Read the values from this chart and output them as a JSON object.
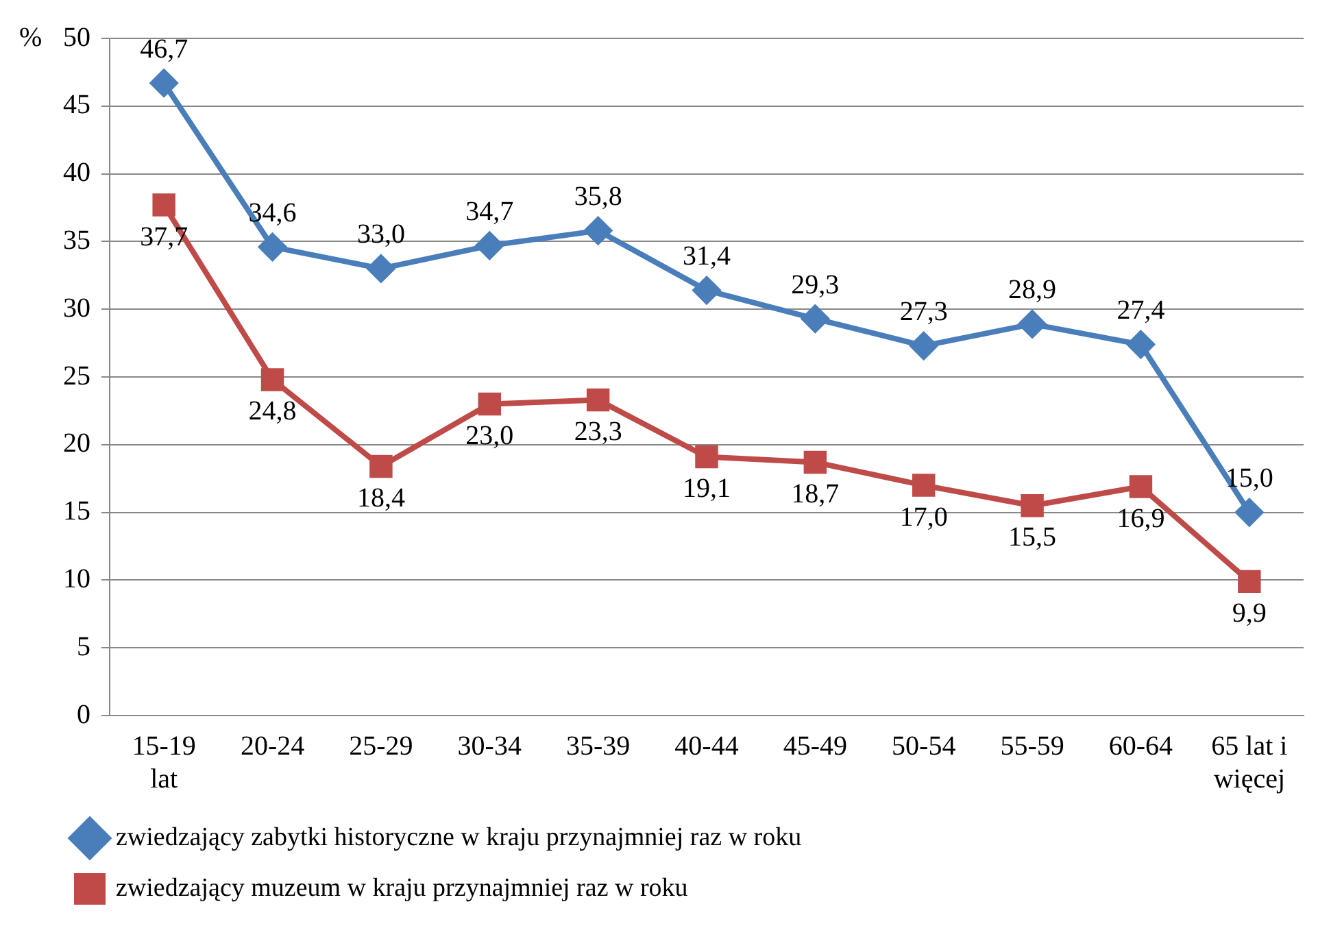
{
  "chart_data": {
    "type": "line",
    "ylabel": "%",
    "categories": [
      "15-19 lat",
      "20-24",
      "25-29",
      "30-34",
      "35-39",
      "40-44",
      "45-49",
      "50-54",
      "55-59",
      "60-64",
      "65 lat i więcej"
    ],
    "series": [
      {
        "name": "zwiedzający zabytki historyczne w kraju przynajmniej raz w roku",
        "color": "#4a7ebb",
        "marker": "diamond",
        "values": [
          46.7,
          34.6,
          33.0,
          34.7,
          35.8,
          31.4,
          29.3,
          27.3,
          28.9,
          27.4,
          15.0
        ],
        "value_labels": [
          "46,7",
          "34,6",
          "33,0",
          "34,7",
          "35,8",
          "31,4",
          "29,3",
          "27,3",
          "28,9",
          "27,4",
          "15,0"
        ]
      },
      {
        "name": "zwiedzający muzeum w kraju przynajmniej raz w roku",
        "color": "#be4b48",
        "marker": "square",
        "values": [
          37.7,
          24.8,
          18.4,
          23.0,
          23.3,
          19.1,
          18.7,
          17.0,
          15.5,
          16.9,
          9.9
        ],
        "value_labels": [
          "37,7",
          "24,8",
          "18,4",
          "23,0",
          "23,3",
          "19,1",
          "18,7",
          "17,0",
          "15,5",
          "16,9",
          "9,9"
        ]
      }
    ],
    "ylim": [
      0,
      50
    ],
    "yticks": [
      0,
      5,
      10,
      15,
      20,
      25,
      30,
      35,
      40,
      45,
      50
    ],
    "grid": "y",
    "legend": "bottom",
    "line_style": "solid"
  }
}
